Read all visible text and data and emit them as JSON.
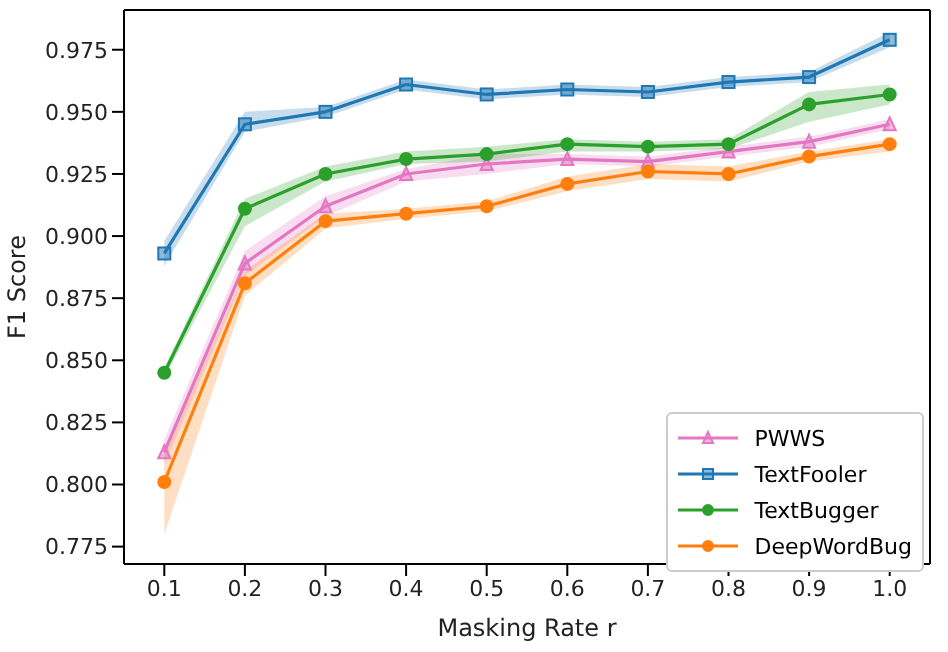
{
  "chart_data": {
    "type": "line",
    "xlabel": "Masking Rate r",
    "ylabel": "F1 Score",
    "x": [
      0.1,
      0.2,
      0.3,
      0.4,
      0.5,
      0.6,
      0.7,
      0.8,
      0.9,
      1.0
    ],
    "xlim": [
      0.05,
      1.05
    ],
    "xticks": [
      {
        "value": 0.1,
        "label": "0.1"
      },
      {
        "value": 0.2,
        "label": "0.2"
      },
      {
        "value": 0.3,
        "label": "0.3"
      },
      {
        "value": 0.4,
        "label": "0.4"
      },
      {
        "value": 0.5,
        "label": "0.5"
      },
      {
        "value": 0.6,
        "label": "0.6"
      },
      {
        "value": 0.7,
        "label": "0.7"
      },
      {
        "value": 0.8,
        "label": "0.8"
      },
      {
        "value": 0.9,
        "label": "0.9"
      },
      {
        "value": 1.0,
        "label": "1.0"
      }
    ],
    "ylim": [
      0.768,
      0.991
    ],
    "yticks": [
      {
        "value": 0.775,
        "label": "0.775"
      },
      {
        "value": 0.8,
        "label": "0.800"
      },
      {
        "value": 0.825,
        "label": "0.825"
      },
      {
        "value": 0.85,
        "label": "0.850"
      },
      {
        "value": 0.875,
        "label": "0.875"
      },
      {
        "value": 0.9,
        "label": "0.900"
      },
      {
        "value": 0.925,
        "label": "0.925"
      },
      {
        "value": 0.95,
        "label": "0.950"
      },
      {
        "value": 0.975,
        "label": "0.975"
      }
    ],
    "grid": false,
    "legend": "bottom right",
    "line_style": "solid",
    "series": [
      {
        "name": "PWWS",
        "color": "#e377c2",
        "marker": "triangle",
        "values": [
          0.813,
          0.889,
          0.912,
          0.925,
          0.929,
          0.931,
          0.93,
          0.934,
          0.938,
          0.945
        ],
        "lower": [
          0.808,
          0.884,
          0.908,
          0.922,
          0.925,
          0.929,
          0.928,
          0.932,
          0.936,
          0.943
        ],
        "upper": [
          0.818,
          0.894,
          0.916,
          0.927,
          0.933,
          0.933,
          0.932,
          0.936,
          0.94,
          0.947
        ]
      },
      {
        "name": "TextFooler",
        "color": "#1f77b4",
        "marker": "square",
        "values": [
          0.893,
          0.945,
          0.95,
          0.961,
          0.957,
          0.959,
          0.958,
          0.962,
          0.964,
          0.979
        ],
        "lower": [
          0.888,
          0.942,
          0.948,
          0.959,
          0.955,
          0.957,
          0.956,
          0.96,
          0.962,
          0.976
        ],
        "upper": [
          0.898,
          0.95,
          0.952,
          0.963,
          0.959,
          0.961,
          0.96,
          0.964,
          0.966,
          0.982
        ]
      },
      {
        "name": "TextBugger",
        "color": "#2ca02c",
        "marker": "circle",
        "values": [
          0.845,
          0.911,
          0.925,
          0.931,
          0.933,
          0.937,
          0.936,
          0.937,
          0.953,
          0.957
        ],
        "lower": [
          0.843,
          0.904,
          0.922,
          0.929,
          0.93,
          0.934,
          0.934,
          0.935,
          0.946,
          0.953
        ],
        "upper": [
          0.847,
          0.915,
          0.928,
          0.934,
          0.936,
          0.939,
          0.938,
          0.939,
          0.958,
          0.961
        ]
      },
      {
        "name": "DeepWordBug",
        "color": "#ff7f0e",
        "marker": "circle",
        "values": [
          0.801,
          0.881,
          0.906,
          0.909,
          0.912,
          0.921,
          0.926,
          0.925,
          0.932,
          0.937
        ],
        "lower": [
          0.78,
          0.876,
          0.903,
          0.907,
          0.91,
          0.918,
          0.923,
          0.922,
          0.93,
          0.934
        ],
        "upper": [
          0.812,
          0.886,
          0.909,
          0.911,
          0.914,
          0.924,
          0.929,
          0.928,
          0.934,
          0.939
        ]
      }
    ]
  }
}
